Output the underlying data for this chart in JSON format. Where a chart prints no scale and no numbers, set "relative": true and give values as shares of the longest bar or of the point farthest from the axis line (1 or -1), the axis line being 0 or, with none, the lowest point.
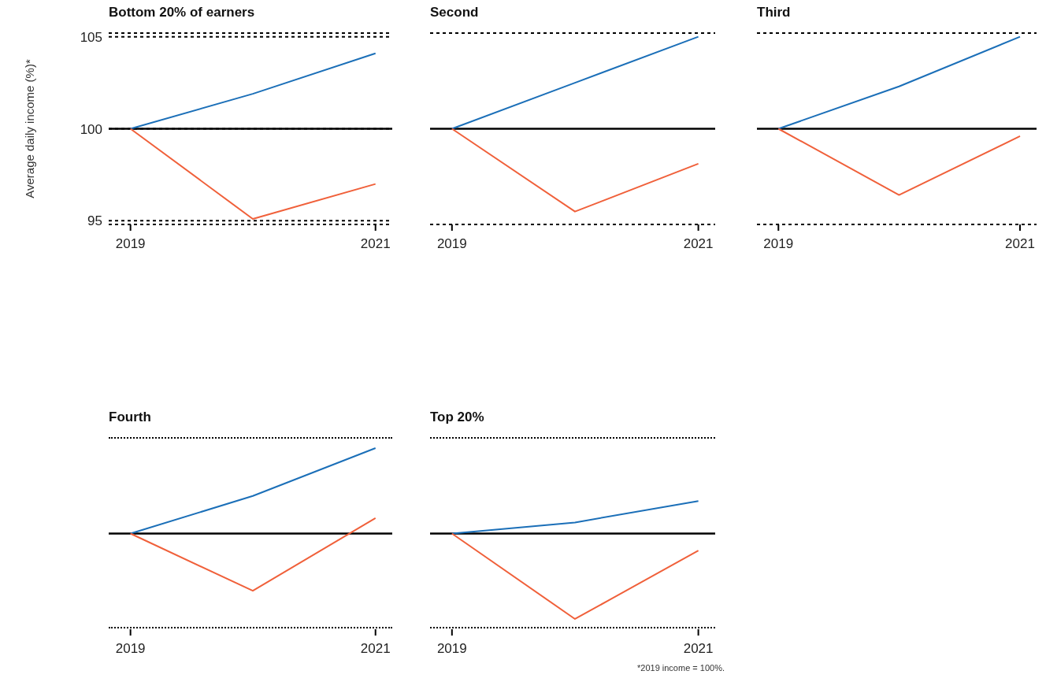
{
  "chart_data": [
    {
      "type": "line",
      "title": "Bottom 20% of earners",
      "ylabel": "Average daily income (%)*",
      "x": [
        "2019",
        "2020",
        "2021"
      ],
      "xlim": [
        "2018-10-28",
        "2021-02-20"
      ],
      "xticks": [
        "2019",
        "2021"
      ],
      "ylim": [
        94.8,
        105.2
      ],
      "yticks": [
        95,
        100,
        105
      ],
      "grid": "y",
      "marker": "none",
      "line_style": "solid",
      "ref_lines": [
        {
          "axis": "y",
          "value": 100,
          "color": "#000000"
        }
      ],
      "series": [
        {
          "color": "#1b6fb8",
          "values": [
            100,
            101.9,
            104.1
          ]
        },
        {
          "color": "#f0603a",
          "values": [
            100,
            95.1,
            97.0
          ]
        }
      ]
    },
    {
      "type": "line",
      "title": "Second",
      "x": [
        "2019",
        "2020",
        "2021"
      ],
      "xlim": [
        "2018-10-28",
        "2021-02-20"
      ],
      "xticks": [
        "2019",
        "2021"
      ],
      "ylim": [
        94.8,
        105.2
      ],
      "yticks": [
        95,
        100,
        105
      ],
      "grid": "y",
      "marker": "none",
      "line_style": "solid",
      "tick_labels": "x",
      "ref_lines": [
        {
          "axis": "y",
          "value": 100,
          "color": "#000000"
        }
      ],
      "series": [
        {
          "color": "#1b6fb8",
          "values": [
            100,
            102.5,
            105.0
          ]
        },
        {
          "color": "#f0603a",
          "values": [
            100,
            95.5,
            98.1
          ]
        }
      ]
    },
    {
      "type": "line",
      "title": "Third",
      "x": [
        "2019",
        "2020",
        "2021"
      ],
      "xlim": [
        "2018-10-28",
        "2021-02-20"
      ],
      "xticks": [
        "2019",
        "2021"
      ],
      "ylim": [
        94.8,
        105.2
      ],
      "yticks": [
        95,
        100,
        105
      ],
      "grid": "y",
      "marker": "none",
      "line_style": "solid",
      "tick_labels": "x",
      "ref_lines": [
        {
          "axis": "y",
          "value": 100,
          "color": "#000000"
        }
      ],
      "series": [
        {
          "color": "#1b6fb8",
          "values": [
            100,
            102.3,
            105.0
          ]
        },
        {
          "color": "#f0603a",
          "values": [
            100,
            96.4,
            99.6
          ]
        }
      ]
    },
    {
      "type": "line",
      "title": "Fourth",
      "relative": true,
      "x": [
        "2019",
        "2020",
        "2021"
      ],
      "xlim": [
        "2018-10-28",
        "2021-02-20"
      ],
      "xticks": [
        "2019",
        "2021"
      ],
      "marker": "none",
      "line_style": "solid",
      "tick_labels": "x",
      "series": [
        {
          "color": "#1b6fb8",
          "values": [
            0,
            0.44,
            1
          ]
        },
        {
          "color": "#f0603a",
          "values": [
            0,
            -0.67,
            0.18
          ]
        }
      ]
    },
    {
      "type": "line",
      "title": "Top 20%",
      "relative": true,
      "x": [
        "2019",
        "2020",
        "2021"
      ],
      "xlim": [
        "2018-10-28",
        "2021-02-20"
      ],
      "xticks": [
        "2019",
        "2021"
      ],
      "marker": "none",
      "line_style": "solid",
      "tick_labels": "x",
      "annotations": [
        "*2019 income = 100%."
      ],
      "series": [
        {
          "color": "#1b6fb8",
          "values": [
            0,
            0.13,
            0.38
          ]
        },
        {
          "color": "#f0603a",
          "values": [
            0,
            -1,
            -0.2
          ]
        }
      ]
    }
  ]
}
